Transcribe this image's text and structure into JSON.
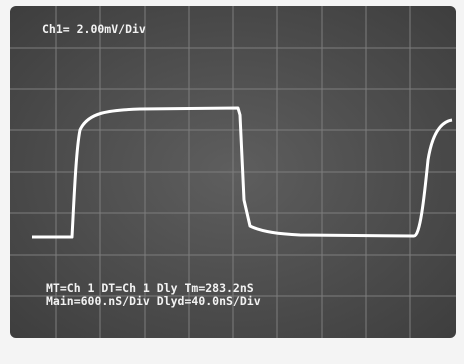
{
  "screen": {
    "channel_label": "Ch1= 2.00mV/Div",
    "status_line_1": "MT=Ch 1 DT=Ch 1 Dly Tm=283.2nS",
    "status_line_2": "Main=600.nS/Div Dlyd=40.0nS/Div"
  }
}
